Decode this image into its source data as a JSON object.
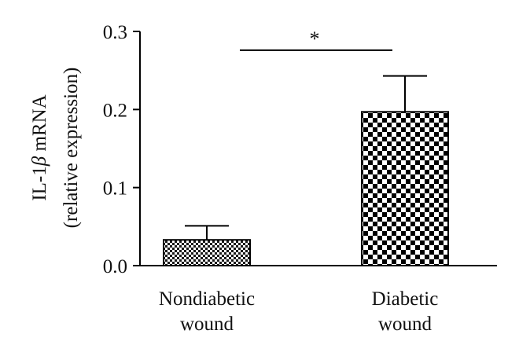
{
  "chart_data": {
    "type": "bar",
    "ylabel_line1_prefix": "IL-1",
    "ylabel_line1_symbol": "β",
    "ylabel_line1_suffix": " mRNA",
    "ylabel_line2": "(relative expression)",
    "ylim": [
      0,
      0.3
    ],
    "yticks": [
      "0.0",
      "0.1",
      "0.2",
      "0.3"
    ],
    "categories": [
      {
        "line1": "Nondiabetic",
        "line2": "wound"
      },
      {
        "line1": "Diabetic",
        "line2": "wound"
      }
    ],
    "values": [
      0.033,
      0.197
    ],
    "error_upper": [
      0.051,
      0.243
    ],
    "significance": {
      "label": "*",
      "between": [
        0,
        1
      ],
      "y": 0.276
    },
    "colors": {
      "bar_fill_a": "#000000",
      "bar_fill_b": "#ffffff",
      "axis": "#000000"
    }
  }
}
